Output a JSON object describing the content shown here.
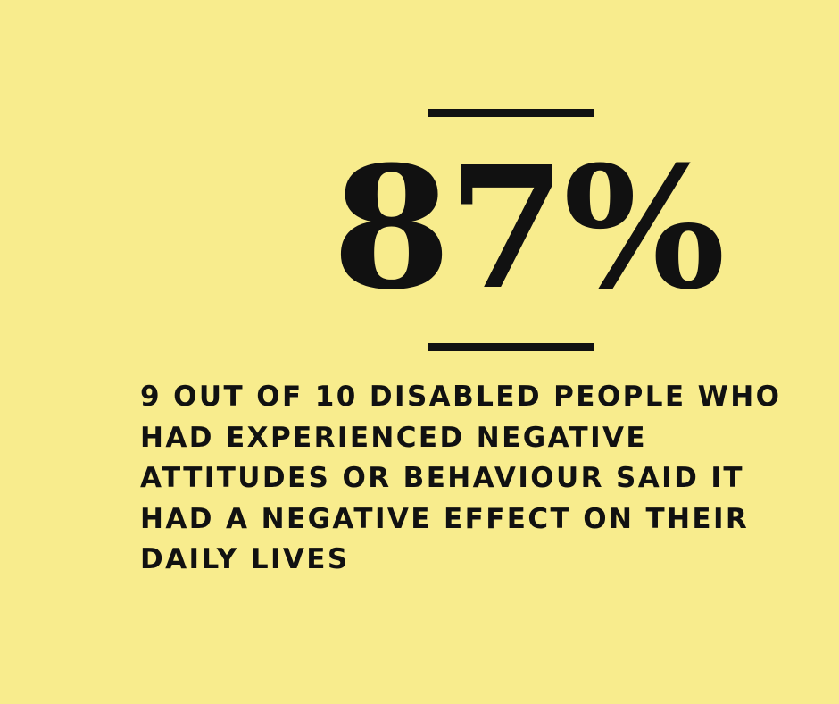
{
  "statistic": {
    "value": "87%",
    "caption": "9 OUT OF 10 DISABLED PEOPLE WHO HAD EXPERIENCED NEGATIVE ATTITUDES OR BEHAVIOUR SAID IT HAD A NEGATIVE EFFECT ON THEIR DAILY LIVES"
  },
  "colors": {
    "background": "#f8ec8d",
    "text": "#111111"
  }
}
